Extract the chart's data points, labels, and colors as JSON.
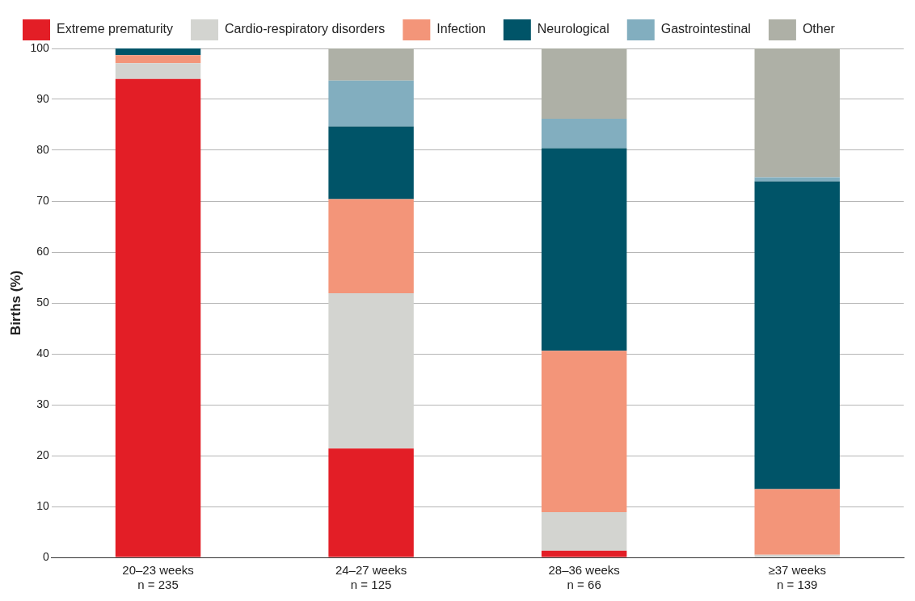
{
  "chart_data": {
    "type": "bar",
    "stacked": true,
    "ylabel": "Births (%)",
    "categories": [
      "20–23 weeks\nn = 235",
      "24–27 weeks\nn = 125",
      "28–36 weeks\nn = 66",
      "≥37 weeks\nn = 139"
    ],
    "series": [
      {
        "name": "Extreme prematurity",
        "color": "#e31e26",
        "values": [
          94,
          21.4,
          1.3,
          0
        ]
      },
      {
        "name": "Cardio-respiratory disorders",
        "color": "#d3d4d0",
        "values": [
          3.1,
          30.5,
          7.6,
          0.5
        ]
      },
      {
        "name": "Infection",
        "color": "#f39579",
        "values": [
          1.6,
          18.5,
          31.7,
          12.9
        ]
      },
      {
        "name": "Neurological",
        "color": "#005468",
        "values": [
          1.3,
          14.3,
          39.8,
          60.5
        ]
      },
      {
        "name": "Gastrointestinal",
        "color": "#82aebf",
        "values": [
          0,
          9,
          5.8,
          0.8
        ]
      },
      {
        "name": "Other",
        "color": "#aeb0a6",
        "values": [
          0,
          6.3,
          13.8,
          25.3
        ]
      }
    ],
    "ylim": [
      0,
      100
    ],
    "yticks": [
      0,
      10,
      20,
      30,
      40,
      50,
      60,
      70,
      80,
      90,
      100
    ],
    "grid": "y",
    "legend": "top"
  }
}
